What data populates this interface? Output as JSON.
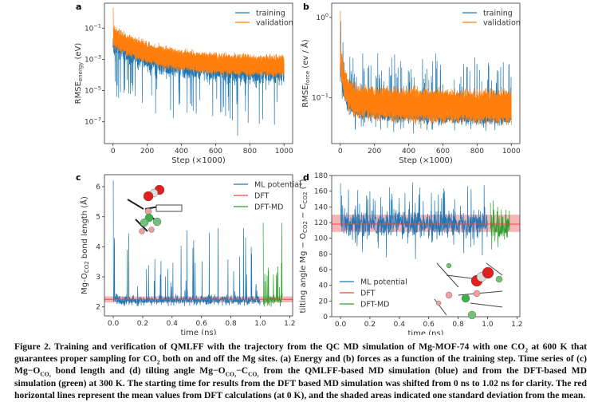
{
  "figure": {
    "panels": [
      {
        "label": "a"
      },
      {
        "label": "b"
      },
      {
        "label": "c"
      },
      {
        "label": "d"
      }
    ]
  },
  "chart_data": [
    {
      "panel": "a",
      "type": "line",
      "xlabel": "Step (×1000)",
      "ylabel": {
        "main": "RMSE",
        "sub": "energy",
        "unit": " (eV)"
      },
      "yscale": "log",
      "xlim": [
        -50,
        1050
      ],
      "ylim": [
        4e-09,
        4
      ],
      "xticks": [
        0,
        200,
        400,
        600,
        800,
        1000
      ],
      "yticks": [
        {
          "base": "10",
          "exp": "−1",
          "value": 0.1
        },
        {
          "base": "10",
          "exp": "−3",
          "value": 0.001
        },
        {
          "base": "10",
          "exp": "−5",
          "value": 1e-05
        },
        {
          "base": "10",
          "exp": "−7",
          "value": 1e-07
        }
      ],
      "legend": "top-right",
      "series": [
        {
          "name": "training",
          "color": "#1f77b4",
          "start": 0.1,
          "end_typical": 0.0001,
          "min": 1e-08
        },
        {
          "name": "validation",
          "color": "#ff7f0e",
          "start": 2,
          "end_typical": 0.0003
        }
      ]
    },
    {
      "panel": "b",
      "type": "line",
      "xlabel": "Step (×1000)",
      "ylabel": {
        "main": "RMSE",
        "sub": "force",
        "unit": " (ev / Å)"
      },
      "yscale": "log",
      "xlim": [
        -50,
        1050
      ],
      "ylim": [
        0.027,
        1.5
      ],
      "xticks": [
        0,
        200,
        400,
        600,
        800,
        1000
      ],
      "yticks": [
        {
          "base": "10",
          "exp": "0",
          "value": 1
        },
        {
          "base": "10",
          "exp": "−1",
          "value": 0.1
        }
      ],
      "legend": "top-right",
      "series": [
        {
          "name": "training",
          "color": "#1f77b4",
          "start": 1.2,
          "end_typical": 0.055,
          "max_spike": 0.35
        },
        {
          "name": "validation",
          "color": "#ff7f0e",
          "start": 1.2,
          "end_typical": 0.08
        }
      ]
    },
    {
      "panel": "c",
      "type": "line",
      "xlabel": "time (ns)",
      "ylabel": {
        "main": "Mg-O",
        "sub": "CO2",
        "unit": " bond length (Å)"
      },
      "xlim": [
        -0.06,
        1.22
      ],
      "ylim": [
        1.7,
        6.4
      ],
      "xticks": [
        "0.0",
        "0.2",
        "0.4",
        "0.6",
        "0.8",
        "1.0",
        "1.2"
      ],
      "yticks": [
        2,
        3,
        4,
        5,
        6
      ],
      "legend": "top-right",
      "series": [
        {
          "name": "ML potential",
          "color": "#1f77b4",
          "t_range": [
            0,
            1.0
          ],
          "mean": 2.22,
          "max": 6.2
        },
        {
          "name": "DFT",
          "color": "#e8474a",
          "mean": 2.25,
          "std_band": [
            2.15,
            2.35
          ]
        },
        {
          "name": "DFT-MD",
          "color": "#2ca02c",
          "t_range": [
            1.02,
            1.15
          ],
          "mean": 2.22,
          "max": 4.8
        }
      ]
    },
    {
      "panel": "d",
      "type": "line",
      "xlabel": "time (ns)",
      "ylabel": {
        "main": "tilting angle Mg − O",
        "sub": "CO2",
        "mid": " − C",
        "sub2": "CO2",
        "unit": " (°)"
      },
      "xlim": [
        -0.06,
        1.22
      ],
      "ylim": [
        0,
        180
      ],
      "xticks": [
        "0.0",
        "0.2",
        "0.4",
        "0.6",
        "0.8",
        "1.0",
        "1.2"
      ],
      "yticks": [
        0,
        20,
        40,
        60,
        80,
        100,
        120,
        140,
        160,
        180
      ],
      "legend": "bottom-left",
      "series": [
        {
          "name": "ML potential",
          "color": "#1f77b4",
          "t_range": [
            0,
            1.0
          ],
          "mean": 118,
          "max": 170,
          "min": 73
        },
        {
          "name": "DFT",
          "color": "#e8474a",
          "mean": 118,
          "std_band": [
            108,
            130
          ]
        },
        {
          "name": "DFT-MD",
          "color": "#2ca02c",
          "t_range": [
            1.02,
            1.15
          ],
          "mean": 115,
          "max": 145,
          "min": 74
        }
      ]
    }
  ],
  "caption": {
    "parts": [
      {
        "t": "Figure 2. Training and verification of QMLFF with the trajectory from the QC MD simulation of Mg-MOF-74 with one CO"
      },
      {
        "sub": "2"
      },
      {
        "t": " at 600 K that guarantees proper sampling for CO"
      },
      {
        "sub": "2"
      },
      {
        "t": " both on and off the Mg sites. (a) Energy and (b) forces as a function of the training step. Time series of (c) Mg−O"
      },
      {
        "sub": "CO₂"
      },
      {
        "t": " bond length and (d) tilting angle Mg−O"
      },
      {
        "sub": "CO₂"
      },
      {
        "t": "−C"
      },
      {
        "sub": "CO₂"
      },
      {
        "t": " from the QMLFF-based MD simulation (blue) and from the DFT-based MD simulation (green) at 300 K. The starting time for results from the DFT based MD simulation was shifted from 0 ns to 1.02 ns for clarity. The red horizontal lines represent the mean values from DFT calculations (at 0 K), and the shaded areas indicated one standard deviation from the mean."
      }
    ]
  }
}
